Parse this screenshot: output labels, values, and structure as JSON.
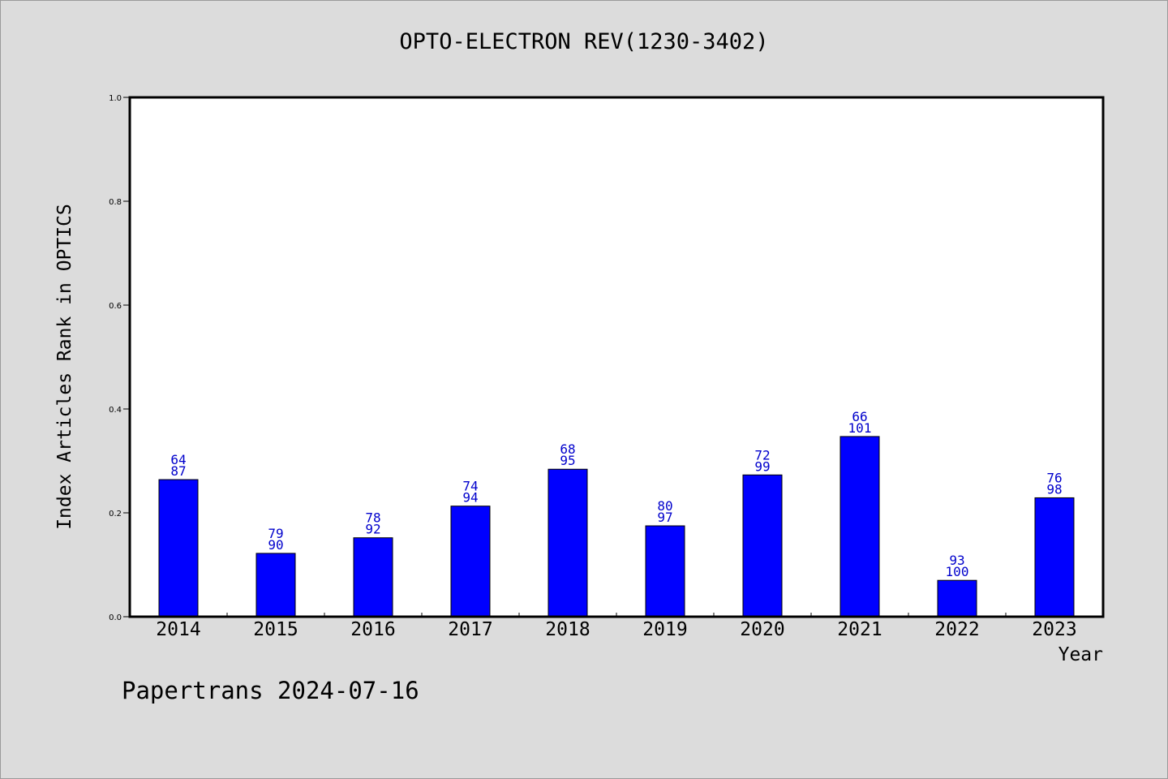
{
  "chart_data": {
    "type": "bar",
    "title": "OPTO-ELECTRON REV(1230-3402)",
    "xlabel": "Year",
    "ylabel": "Index Articles Rank in OPTICS",
    "ylim": [
      0,
      1.0
    ],
    "yticks": [
      "0.0",
      "0.2",
      "0.4",
      "0.6",
      "0.8",
      "1.0"
    ],
    "grid": false,
    "bar_color": "#0000ff",
    "label_color": "#0000cc",
    "categories": [
      "2014",
      "2015",
      "2016",
      "2017",
      "2018",
      "2019",
      "2020",
      "2021",
      "2022",
      "2023"
    ],
    "values": [
      0.264,
      0.122,
      0.152,
      0.213,
      0.284,
      0.175,
      0.273,
      0.347,
      0.07,
      0.229
    ],
    "labels_top": [
      "64",
      "79",
      "78",
      "74",
      "68",
      "80",
      "72",
      "66",
      "93",
      "76"
    ],
    "labels_bottom": [
      "87",
      "90",
      "92",
      "94",
      "95",
      "97",
      "99",
      "101",
      "100",
      "98"
    ]
  },
  "footer": "Papertrans 2024-07-16"
}
